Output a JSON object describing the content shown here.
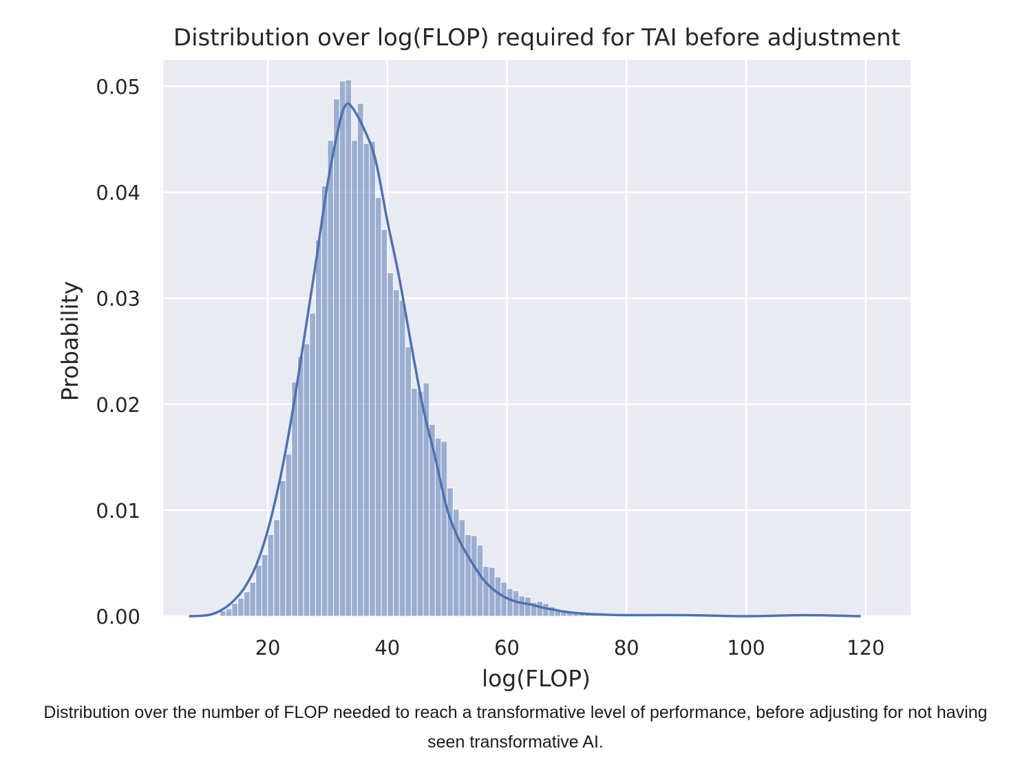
{
  "chart_data": {
    "type": "bar",
    "title": "Distribution over log(FLOP) required for TAI before adjustment",
    "xlabel": "log(FLOP)",
    "ylabel": "Probability",
    "xlim": [
      2.5,
      127.5
    ],
    "ylim": [
      0,
      0.0525
    ],
    "xticks": [
      20,
      40,
      60,
      80,
      100,
      120
    ],
    "xtick_labels": [
      "20",
      "40",
      "60",
      "80",
      "100",
      "120"
    ],
    "yticks": [
      0,
      0.01,
      0.02,
      0.03,
      0.04,
      0.05
    ],
    "ytick_labels": [
      "0.00",
      "0.01",
      "0.02",
      "0.03",
      "0.04",
      "0.05"
    ],
    "grid": true,
    "legend": null,
    "colors": {
      "background": "#eaeaf2",
      "grid": "#ffffff",
      "bar_fill": "#4c72b0",
      "bar_opacity": 0.5,
      "kde_line": "#4c72b0"
    },
    "histogram": {
      "bin_width": 1,
      "bin_start": [
        12,
        13,
        14,
        15,
        16,
        17,
        18,
        19,
        20,
        21,
        22,
        23,
        24,
        25,
        26,
        27,
        28,
        29,
        30,
        31,
        32,
        33,
        34,
        35,
        36,
        37,
        38,
        39,
        40,
        41,
        42,
        43,
        44,
        45,
        46,
        47,
        48,
        49,
        50,
        51,
        52,
        53,
        54,
        55,
        56,
        57,
        58,
        59,
        60,
        61,
        62,
        63,
        64,
        65,
        66,
        67,
        68,
        69,
        70,
        71,
        72,
        73,
        74,
        75,
        76
      ],
      "probability": [
        0.0005,
        0.0007,
        0.0012,
        0.0017,
        0.0023,
        0.0032,
        0.0048,
        0.0058,
        0.0077,
        0.0091,
        0.0128,
        0.0153,
        0.0221,
        0.0245,
        0.0257,
        0.0286,
        0.0355,
        0.0406,
        0.0449,
        0.0488,
        0.0505,
        0.0506,
        0.0449,
        0.0484,
        0.0446,
        0.0448,
        0.0395,
        0.0365,
        0.0324,
        0.0308,
        0.0298,
        0.0254,
        0.0215,
        0.0212,
        0.022,
        0.0181,
        0.0168,
        0.0165,
        0.0121,
        0.0101,
        0.0091,
        0.0077,
        0.0076,
        0.0067,
        0.0047,
        0.0046,
        0.0037,
        0.0032,
        0.0026,
        0.0024,
        0.0019,
        0.0018,
        0.0013,
        0.0014,
        0.0012,
        0.0009,
        0.0006,
        0.0006,
        0.0004,
        0.0003,
        0.0002,
        0.0002,
        0.0002,
        0.0001,
        0.0001
      ]
    },
    "kde": {
      "x": [
        7,
        10,
        12,
        14,
        16,
        18,
        20,
        22,
        24,
        26,
        28,
        30,
        32,
        33,
        34,
        36,
        38,
        40,
        42,
        44,
        46,
        48,
        50,
        52,
        54,
        56,
        58,
        60,
        62,
        64,
        66,
        68,
        70,
        74,
        80,
        90,
        100,
        110,
        119
      ],
      "y": [
        0.0,
        0.0001,
        0.0005,
        0.0013,
        0.0026,
        0.0047,
        0.0081,
        0.0128,
        0.0188,
        0.0259,
        0.0332,
        0.0408,
        0.0465,
        0.0482,
        0.0481,
        0.0461,
        0.0431,
        0.0373,
        0.0319,
        0.0256,
        0.0196,
        0.015,
        0.0101,
        0.0072,
        0.0052,
        0.0035,
        0.0024,
        0.0017,
        0.0013,
        0.0011,
        0.0008,
        0.0006,
        0.0004,
        0.0002,
        0.0001,
        0.0001,
        0.0,
        0.0001,
        0.0
      ]
    }
  },
  "caption": "Distribution over the number of FLOP needed to reach a transformative level of performance, before adjusting for not having seen transformative AI."
}
